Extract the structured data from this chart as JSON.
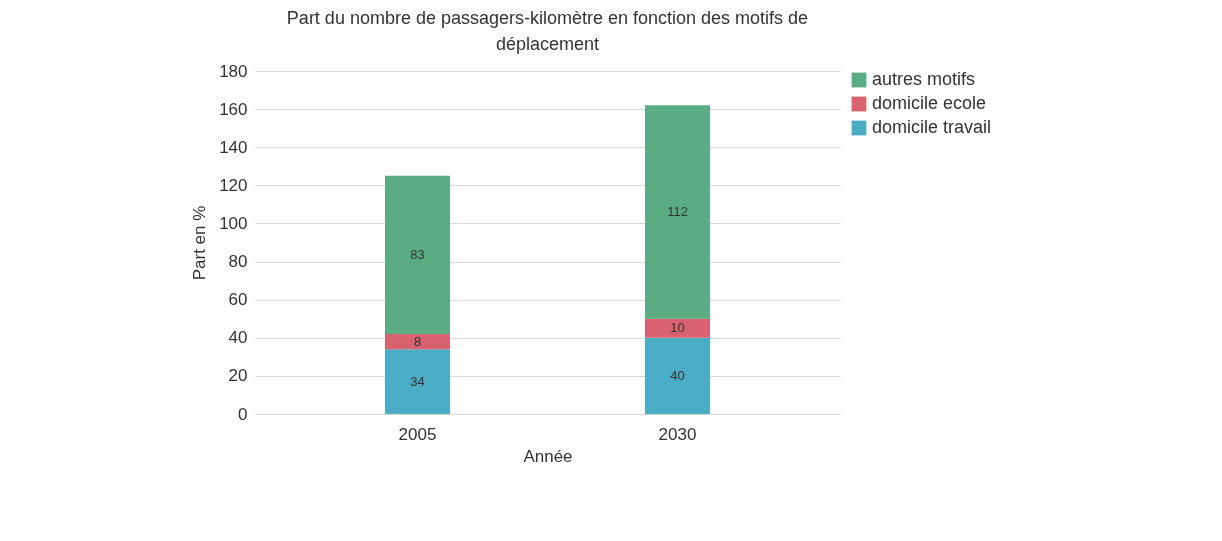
{
  "chart_data": {
    "type": "bar",
    "title": "Part du nombre de passagers-kilomètre en fonction des motifs de déplacement",
    "xlabel": "Année",
    "ylabel": "Part en %",
    "categories": [
      "2005",
      "2030"
    ],
    "stacked": true,
    "data_labels": true,
    "grid": "y",
    "legend": "right",
    "ylim": [
      0,
      180
    ],
    "yticks": [
      0,
      20,
      40,
      60,
      80,
      100,
      120,
      140,
      160,
      180
    ],
    "series": [
      {
        "name": "domicile travail",
        "color": "#4bacc6",
        "values": [
          34,
          40
        ]
      },
      {
        "name": "domicile ecole",
        "color": "#d9626f",
        "values": [
          8,
          10
        ]
      },
      {
        "name": "autres motifs",
        "color": "#5aac84",
        "values": [
          83,
          112
        ]
      }
    ]
  }
}
